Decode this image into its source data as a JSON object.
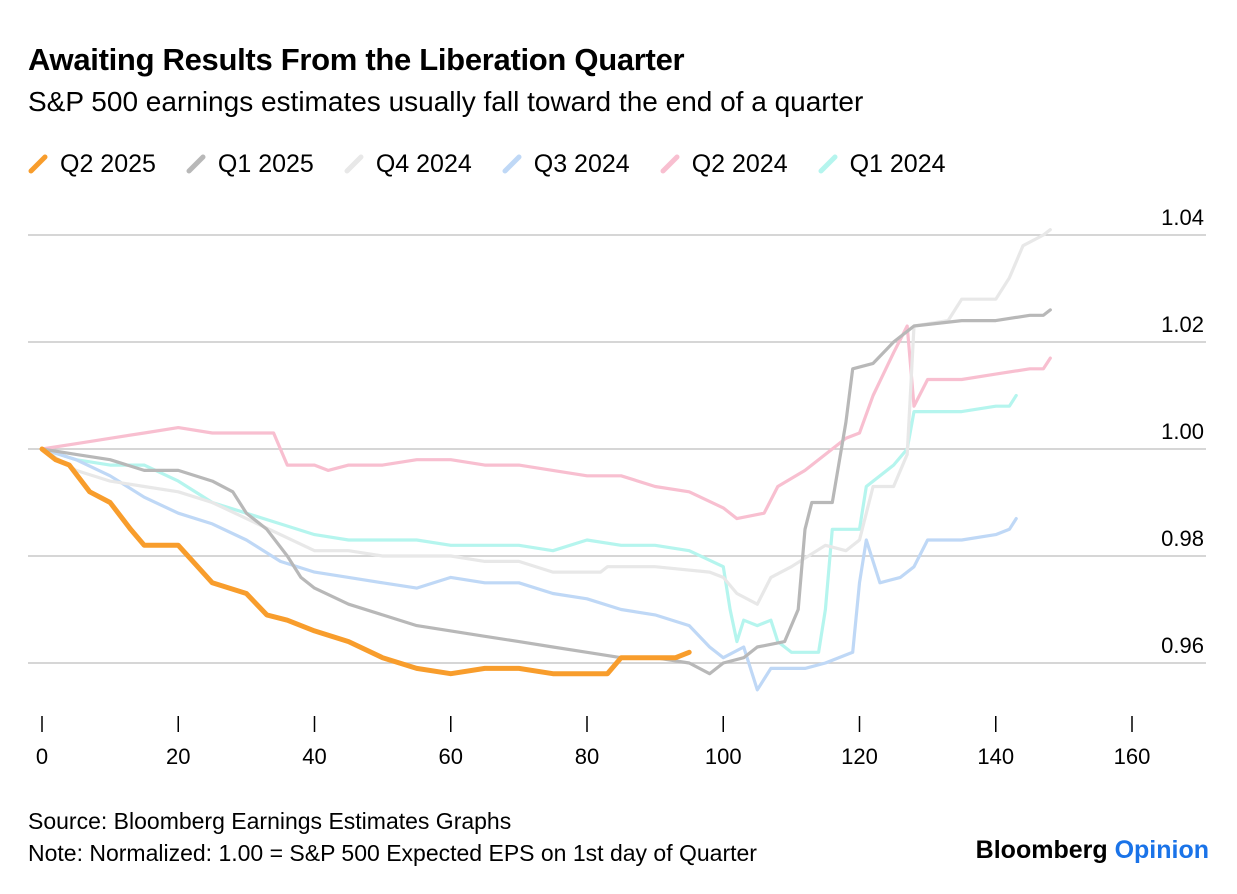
{
  "chart_data": {
    "type": "line",
    "title": "Awaiting Results From the Liberation Quarter",
    "subtitle": "S&P 500 earnings estimates usually fall toward the end of a quarter",
    "xlim": [
      0,
      160
    ],
    "ylim": [
      0.95,
      1.042
    ],
    "x_ticks": [
      0,
      20,
      40,
      60,
      80,
      100,
      120,
      140,
      160
    ],
    "y_ticks": [
      0.96,
      0.98,
      1.0,
      1.02,
      1.04
    ],
    "x_tick_labels": [
      "0",
      "20",
      "40",
      "60",
      "80",
      "100",
      "120",
      "140",
      "160"
    ],
    "y_tick_labels": [
      "0.96",
      "0.98",
      "1.00",
      "1.02",
      "1.04"
    ],
    "legend_position": "top-left",
    "series": [
      {
        "name": "Q1 2024",
        "color": "#b5f5ee",
        "points": [
          [
            0,
            1.0
          ],
          [
            5,
            0.998
          ],
          [
            10,
            0.997
          ],
          [
            15,
            0.997
          ],
          [
            20,
            0.994
          ],
          [
            25,
            0.99
          ],
          [
            30,
            0.988
          ],
          [
            35,
            0.986
          ],
          [
            40,
            0.984
          ],
          [
            45,
            0.983
          ],
          [
            50,
            0.983
          ],
          [
            55,
            0.983
          ],
          [
            60,
            0.982
          ],
          [
            65,
            0.982
          ],
          [
            70,
            0.982
          ],
          [
            75,
            0.981
          ],
          [
            80,
            0.983
          ],
          [
            85,
            0.982
          ],
          [
            90,
            0.982
          ],
          [
            95,
            0.981
          ],
          [
            100,
            0.978
          ],
          [
            101,
            0.97
          ],
          [
            102,
            0.964
          ],
          [
            103,
            0.968
          ],
          [
            105,
            0.967
          ],
          [
            107,
            0.968
          ],
          [
            108,
            0.964
          ],
          [
            110,
            0.962
          ],
          [
            114,
            0.962
          ],
          [
            115,
            0.97
          ],
          [
            116,
            0.985
          ],
          [
            120,
            0.985
          ],
          [
            121,
            0.993
          ],
          [
            125,
            0.997
          ],
          [
            127,
            1.0
          ],
          [
            128,
            1.007
          ],
          [
            135,
            1.007
          ],
          [
            140,
            1.008
          ],
          [
            142,
            1.008
          ],
          [
            143,
            1.01
          ]
        ]
      },
      {
        "name": "Q2 2024",
        "color": "#f8bfd0",
        "points": [
          [
            0,
            1.0
          ],
          [
            5,
            1.001
          ],
          [
            10,
            1.002
          ],
          [
            15,
            1.003
          ],
          [
            20,
            1.004
          ],
          [
            25,
            1.003
          ],
          [
            30,
            1.003
          ],
          [
            34,
            1.003
          ],
          [
            36,
            0.997
          ],
          [
            40,
            0.997
          ],
          [
            42,
            0.996
          ],
          [
            45,
            0.997
          ],
          [
            50,
            0.997
          ],
          [
            55,
            0.998
          ],
          [
            60,
            0.998
          ],
          [
            65,
            0.997
          ],
          [
            70,
            0.997
          ],
          [
            75,
            0.996
          ],
          [
            80,
            0.995
          ],
          [
            85,
            0.995
          ],
          [
            90,
            0.993
          ],
          [
            95,
            0.992
          ],
          [
            100,
            0.989
          ],
          [
            102,
            0.987
          ],
          [
            106,
            0.988
          ],
          [
            108,
            0.993
          ],
          [
            112,
            0.996
          ],
          [
            115,
            0.999
          ],
          [
            118,
            1.002
          ],
          [
            120,
            1.003
          ],
          [
            122,
            1.01
          ],
          [
            125,
            1.018
          ],
          [
            127,
            1.023
          ],
          [
            128,
            1.008
          ],
          [
            130,
            1.013
          ],
          [
            135,
            1.013
          ],
          [
            140,
            1.014
          ],
          [
            145,
            1.015
          ],
          [
            147,
            1.015
          ],
          [
            148,
            1.017
          ]
        ]
      },
      {
        "name": "Q3 2024",
        "color": "#bfd8f6",
        "points": [
          [
            0,
            1.0
          ],
          [
            5,
            0.998
          ],
          [
            10,
            0.995
          ],
          [
            15,
            0.991
          ],
          [
            20,
            0.988
          ],
          [
            25,
            0.986
          ],
          [
            30,
            0.983
          ],
          [
            35,
            0.979
          ],
          [
            40,
            0.977
          ],
          [
            45,
            0.976
          ],
          [
            50,
            0.975
          ],
          [
            55,
            0.974
          ],
          [
            60,
            0.976
          ],
          [
            65,
            0.975
          ],
          [
            70,
            0.975
          ],
          [
            75,
            0.973
          ],
          [
            80,
            0.972
          ],
          [
            85,
            0.97
          ],
          [
            90,
            0.969
          ],
          [
            95,
            0.967
          ],
          [
            98,
            0.963
          ],
          [
            100,
            0.961
          ],
          [
            103,
            0.963
          ],
          [
            105,
            0.955
          ],
          [
            107,
            0.959
          ],
          [
            112,
            0.959
          ],
          [
            115,
            0.96
          ],
          [
            119,
            0.962
          ],
          [
            120,
            0.975
          ],
          [
            121,
            0.983
          ],
          [
            123,
            0.975
          ],
          [
            126,
            0.976
          ],
          [
            128,
            0.978
          ],
          [
            130,
            0.983
          ],
          [
            135,
            0.983
          ],
          [
            140,
            0.984
          ],
          [
            142,
            0.985
          ],
          [
            143,
            0.987
          ]
        ]
      },
      {
        "name": "Q4 2024",
        "color": "#e8e8e8",
        "points": [
          [
            0,
            1.0
          ],
          [
            5,
            0.996
          ],
          [
            10,
            0.994
          ],
          [
            15,
            0.993
          ],
          [
            20,
            0.992
          ],
          [
            25,
            0.99
          ],
          [
            30,
            0.987
          ],
          [
            35,
            0.984
          ],
          [
            40,
            0.981
          ],
          [
            45,
            0.981
          ],
          [
            50,
            0.98
          ],
          [
            55,
            0.98
          ],
          [
            60,
            0.98
          ],
          [
            65,
            0.979
          ],
          [
            70,
            0.979
          ],
          [
            75,
            0.977
          ],
          [
            82,
            0.977
          ],
          [
            83,
            0.978
          ],
          [
            90,
            0.978
          ],
          [
            98,
            0.977
          ],
          [
            100,
            0.976
          ],
          [
            102,
            0.973
          ],
          [
            105,
            0.971
          ],
          [
            107,
            0.976
          ],
          [
            110,
            0.978
          ],
          [
            115,
            0.982
          ],
          [
            118,
            0.981
          ],
          [
            120,
            0.983
          ],
          [
            122,
            0.993
          ],
          [
            125,
            0.993
          ],
          [
            127,
            0.999
          ],
          [
            128,
            1.023
          ],
          [
            133,
            1.024
          ],
          [
            135,
            1.028
          ],
          [
            140,
            1.028
          ],
          [
            142,
            1.032
          ],
          [
            144,
            1.038
          ],
          [
            147,
            1.04
          ],
          [
            148,
            1.041
          ]
        ]
      },
      {
        "name": "Q1 2025",
        "color": "#b8b8b8",
        "points": [
          [
            0,
            1.0
          ],
          [
            5,
            0.999
          ],
          [
            10,
            0.998
          ],
          [
            15,
            0.996
          ],
          [
            20,
            0.996
          ],
          [
            25,
            0.994
          ],
          [
            28,
            0.992
          ],
          [
            30,
            0.988
          ],
          [
            33,
            0.985
          ],
          [
            36,
            0.98
          ],
          [
            38,
            0.976
          ],
          [
            40,
            0.974
          ],
          [
            45,
            0.971
          ],
          [
            50,
            0.969
          ],
          [
            55,
            0.967
          ],
          [
            60,
            0.966
          ],
          [
            65,
            0.965
          ],
          [
            70,
            0.964
          ],
          [
            75,
            0.963
          ],
          [
            80,
            0.962
          ],
          [
            85,
            0.961
          ],
          [
            90,
            0.961
          ],
          [
            95,
            0.96
          ],
          [
            98,
            0.958
          ],
          [
            100,
            0.96
          ],
          [
            103,
            0.961
          ],
          [
            105,
            0.963
          ],
          [
            109,
            0.964
          ],
          [
            111,
            0.97
          ],
          [
            112,
            0.985
          ],
          [
            113,
            0.99
          ],
          [
            116,
            0.99
          ],
          [
            118,
            1.005
          ],
          [
            119,
            1.015
          ],
          [
            122,
            1.016
          ],
          [
            125,
            1.02
          ],
          [
            128,
            1.023
          ],
          [
            135,
            1.024
          ],
          [
            140,
            1.024
          ],
          [
            145,
            1.025
          ],
          [
            147,
            1.025
          ],
          [
            148,
            1.026
          ]
        ]
      },
      {
        "name": "Q2 2025",
        "color": "#f89d2c",
        "points": [
          [
            0,
            1.0
          ],
          [
            2,
            0.998
          ],
          [
            4,
            0.997
          ],
          [
            7,
            0.992
          ],
          [
            10,
            0.99
          ],
          [
            13,
            0.985
          ],
          [
            15,
            0.982
          ],
          [
            20,
            0.982
          ],
          [
            25,
            0.975
          ],
          [
            30,
            0.973
          ],
          [
            33,
            0.969
          ],
          [
            36,
            0.968
          ],
          [
            40,
            0.966
          ],
          [
            45,
            0.964
          ],
          [
            50,
            0.961
          ],
          [
            55,
            0.959
          ],
          [
            60,
            0.958
          ],
          [
            65,
            0.959
          ],
          [
            70,
            0.959
          ],
          [
            75,
            0.958
          ],
          [
            80,
            0.958
          ],
          [
            83,
            0.958
          ],
          [
            85,
            0.961
          ],
          [
            90,
            0.961
          ],
          [
            93,
            0.961
          ],
          [
            95,
            0.962
          ]
        ]
      }
    ]
  },
  "footer": {
    "source": "Source: Bloomberg Earnings Estimates Graphs",
    "note": "Note: Normalized: 1.00 = S&P 500 Expected EPS on 1st day of Quarter",
    "brand_primary": "Bloomberg",
    "brand_secondary": "Opinion"
  }
}
